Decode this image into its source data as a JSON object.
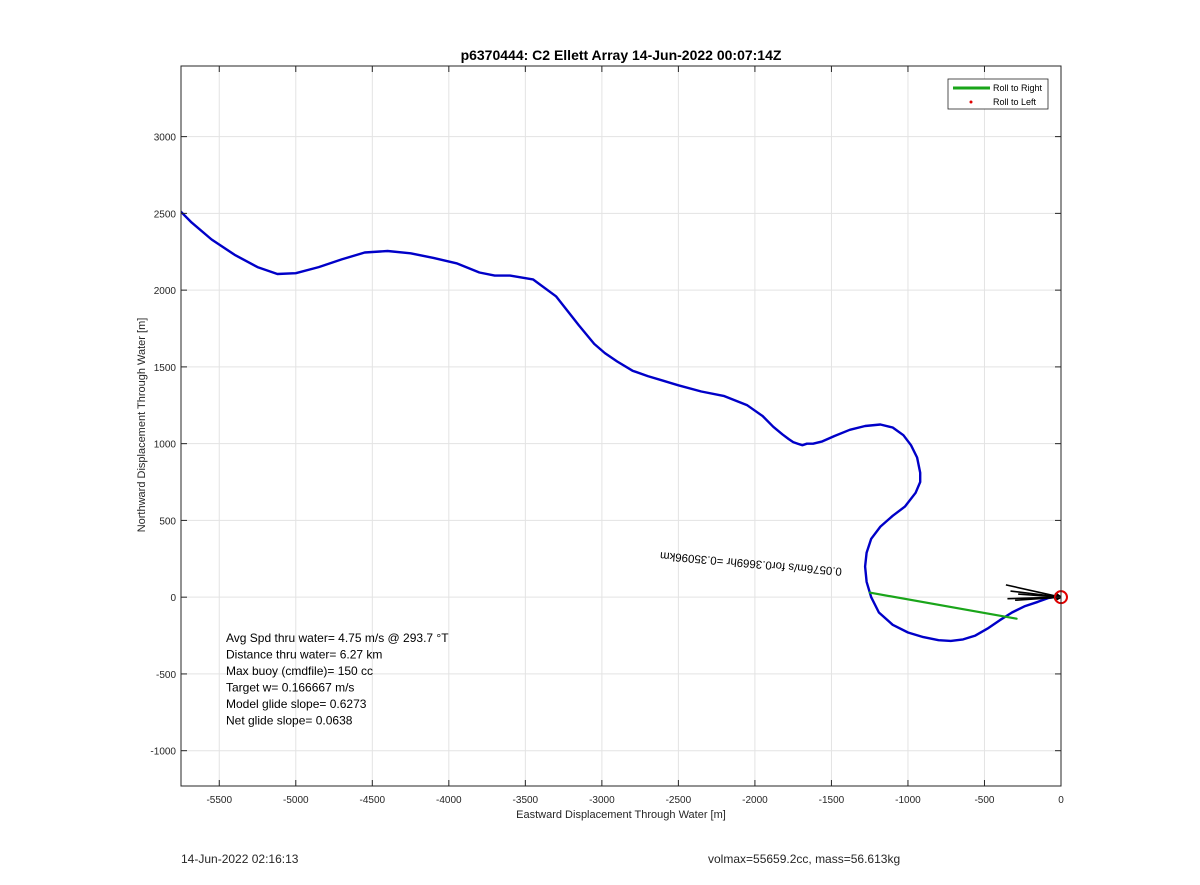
{
  "chart_data": {
    "type": "line",
    "title": "p6370444: C2 Ellett Array 14-Jun-2022 00:07:14Z",
    "xlabel": "Eastward Displacement Through Water [m]",
    "ylabel": "Northward Displacement Through Water [m]",
    "xlim": [
      -5750,
      0
    ],
    "ylim": [
      -1230,
      3460
    ],
    "xticks": [
      -5500,
      -5000,
      -4500,
      -4000,
      -3500,
      -3000,
      -2500,
      -2000,
      -1500,
      -1000,
      -500,
      0
    ],
    "xtick_labels": [
      "-5500",
      "-5000",
      "-4500",
      "-4000",
      "-3500",
      "-3000",
      "-2500",
      "-2000",
      "-1500",
      "-1000",
      "-500",
      "0"
    ],
    "yticks": [
      -1000,
      -500,
      0,
      500,
      1000,
      1500,
      2000,
      2500,
      3000
    ],
    "ytick_labels": [
      "-1000",
      "-500",
      "0",
      "500",
      "1000",
      "1500",
      "2000",
      "2500",
      "3000"
    ],
    "grid": true,
    "legend_position": "top-right",
    "legend": [
      {
        "label": "Roll to Right",
        "color": "#1aa51a",
        "marker": "line"
      },
      {
        "label": "Roll to Left",
        "color": "#e00000",
        "marker": "dot"
      }
    ],
    "series": [
      {
        "color": "#0000c8",
        "x": [
          -5750,
          -5680,
          -5550,
          -5400,
          -5250,
          -5120,
          -5000,
          -4850,
          -4700,
          -4550,
          -4400,
          -4250,
          -4100,
          -3950,
          -3800,
          -3700,
          -3600,
          -3450,
          -3300,
          -3150,
          -3050,
          -2980,
          -2900,
          -2800,
          -2700,
          -2600,
          -2500,
          -2350,
          -2200,
          -2050,
          -1950,
          -1880,
          -1820,
          -1780,
          -1750,
          -1720,
          -1690,
          -1660,
          -1620,
          -1560,
          -1480,
          -1380,
          -1280,
          -1180,
          -1100,
          -1030,
          -980,
          -940,
          -920,
          -920,
          -950,
          -1020,
          -1100,
          -1180,
          -1240,
          -1270,
          -1280,
          -1270,
          -1240,
          -1190,
          -1100,
          -1000,
          -900,
          -800,
          -720,
          -640,
          -560,
          -480,
          -400,
          -320,
          -240,
          -150,
          -80,
          -20,
          0
        ],
        "y": [
          2510,
          2440,
          2330,
          2230,
          2150,
          2105,
          2110,
          2150,
          2200,
          2245,
          2255,
          2240,
          2210,
          2175,
          2115,
          2095,
          2095,
          2070,
          1960,
          1770,
          1650,
          1590,
          1535,
          1475,
          1440,
          1410,
          1380,
          1340,
          1310,
          1250,
          1180,
          1110,
          1060,
          1030,
          1010,
          1000,
          990,
          1000,
          1000,
          1015,
          1050,
          1090,
          1115,
          1125,
          1105,
          1055,
          990,
          910,
          810,
          750,
          680,
          590,
          530,
          460,
          380,
          290,
          200,
          100,
          0,
          -100,
          -180,
          -230,
          -260,
          -280,
          -285,
          -275,
          -250,
          -205,
          -150,
          -100,
          -60,
          -30,
          -5,
          5,
          0
        ]
      },
      {
        "name": "Roll to Right",
        "color": "#1aa51a",
        "x": [
          -1250,
          -290
        ],
        "y": [
          30,
          -140
        ]
      }
    ],
    "markers": [
      {
        "x": 0,
        "y": 0,
        "shape": "circle",
        "color": "#e00000"
      }
    ],
    "current_arrows": [
      {
        "x0": -360,
        "y0": 80,
        "x1": 0,
        "y1": 0
      },
      {
        "x0": -330,
        "y0": 40,
        "x1": 0,
        "y1": 0
      },
      {
        "x0": -280,
        "y0": 20,
        "x1": 0,
        "y1": 0
      },
      {
        "x0": -350,
        "y0": -10,
        "x1": 0,
        "y1": 0
      },
      {
        "x0": -300,
        "y0": -20,
        "x1": 0,
        "y1": 0
      }
    ],
    "annotations": [
      {
        "text": "0.0576m/s for0.3669hr =0.35096km",
        "x": -1430,
        "y": 190,
        "rotate_deg": 185
      }
    ],
    "info_text": [
      "Avg Spd thru water=  4.75 m/s @ 293.7 °T",
      "Distance thru water=  6.27 km",
      "Max buoy (cmdfile)= 150 cc",
      "Target w= 0.166667 m/s",
      "Model glide slope= 0.6273",
      "Net glide slope= 0.0638"
    ]
  },
  "footer": {
    "left": "14-Jun-2022 02:16:13",
    "right": "volmax=55659.2cc, mass=56.613kg"
  }
}
